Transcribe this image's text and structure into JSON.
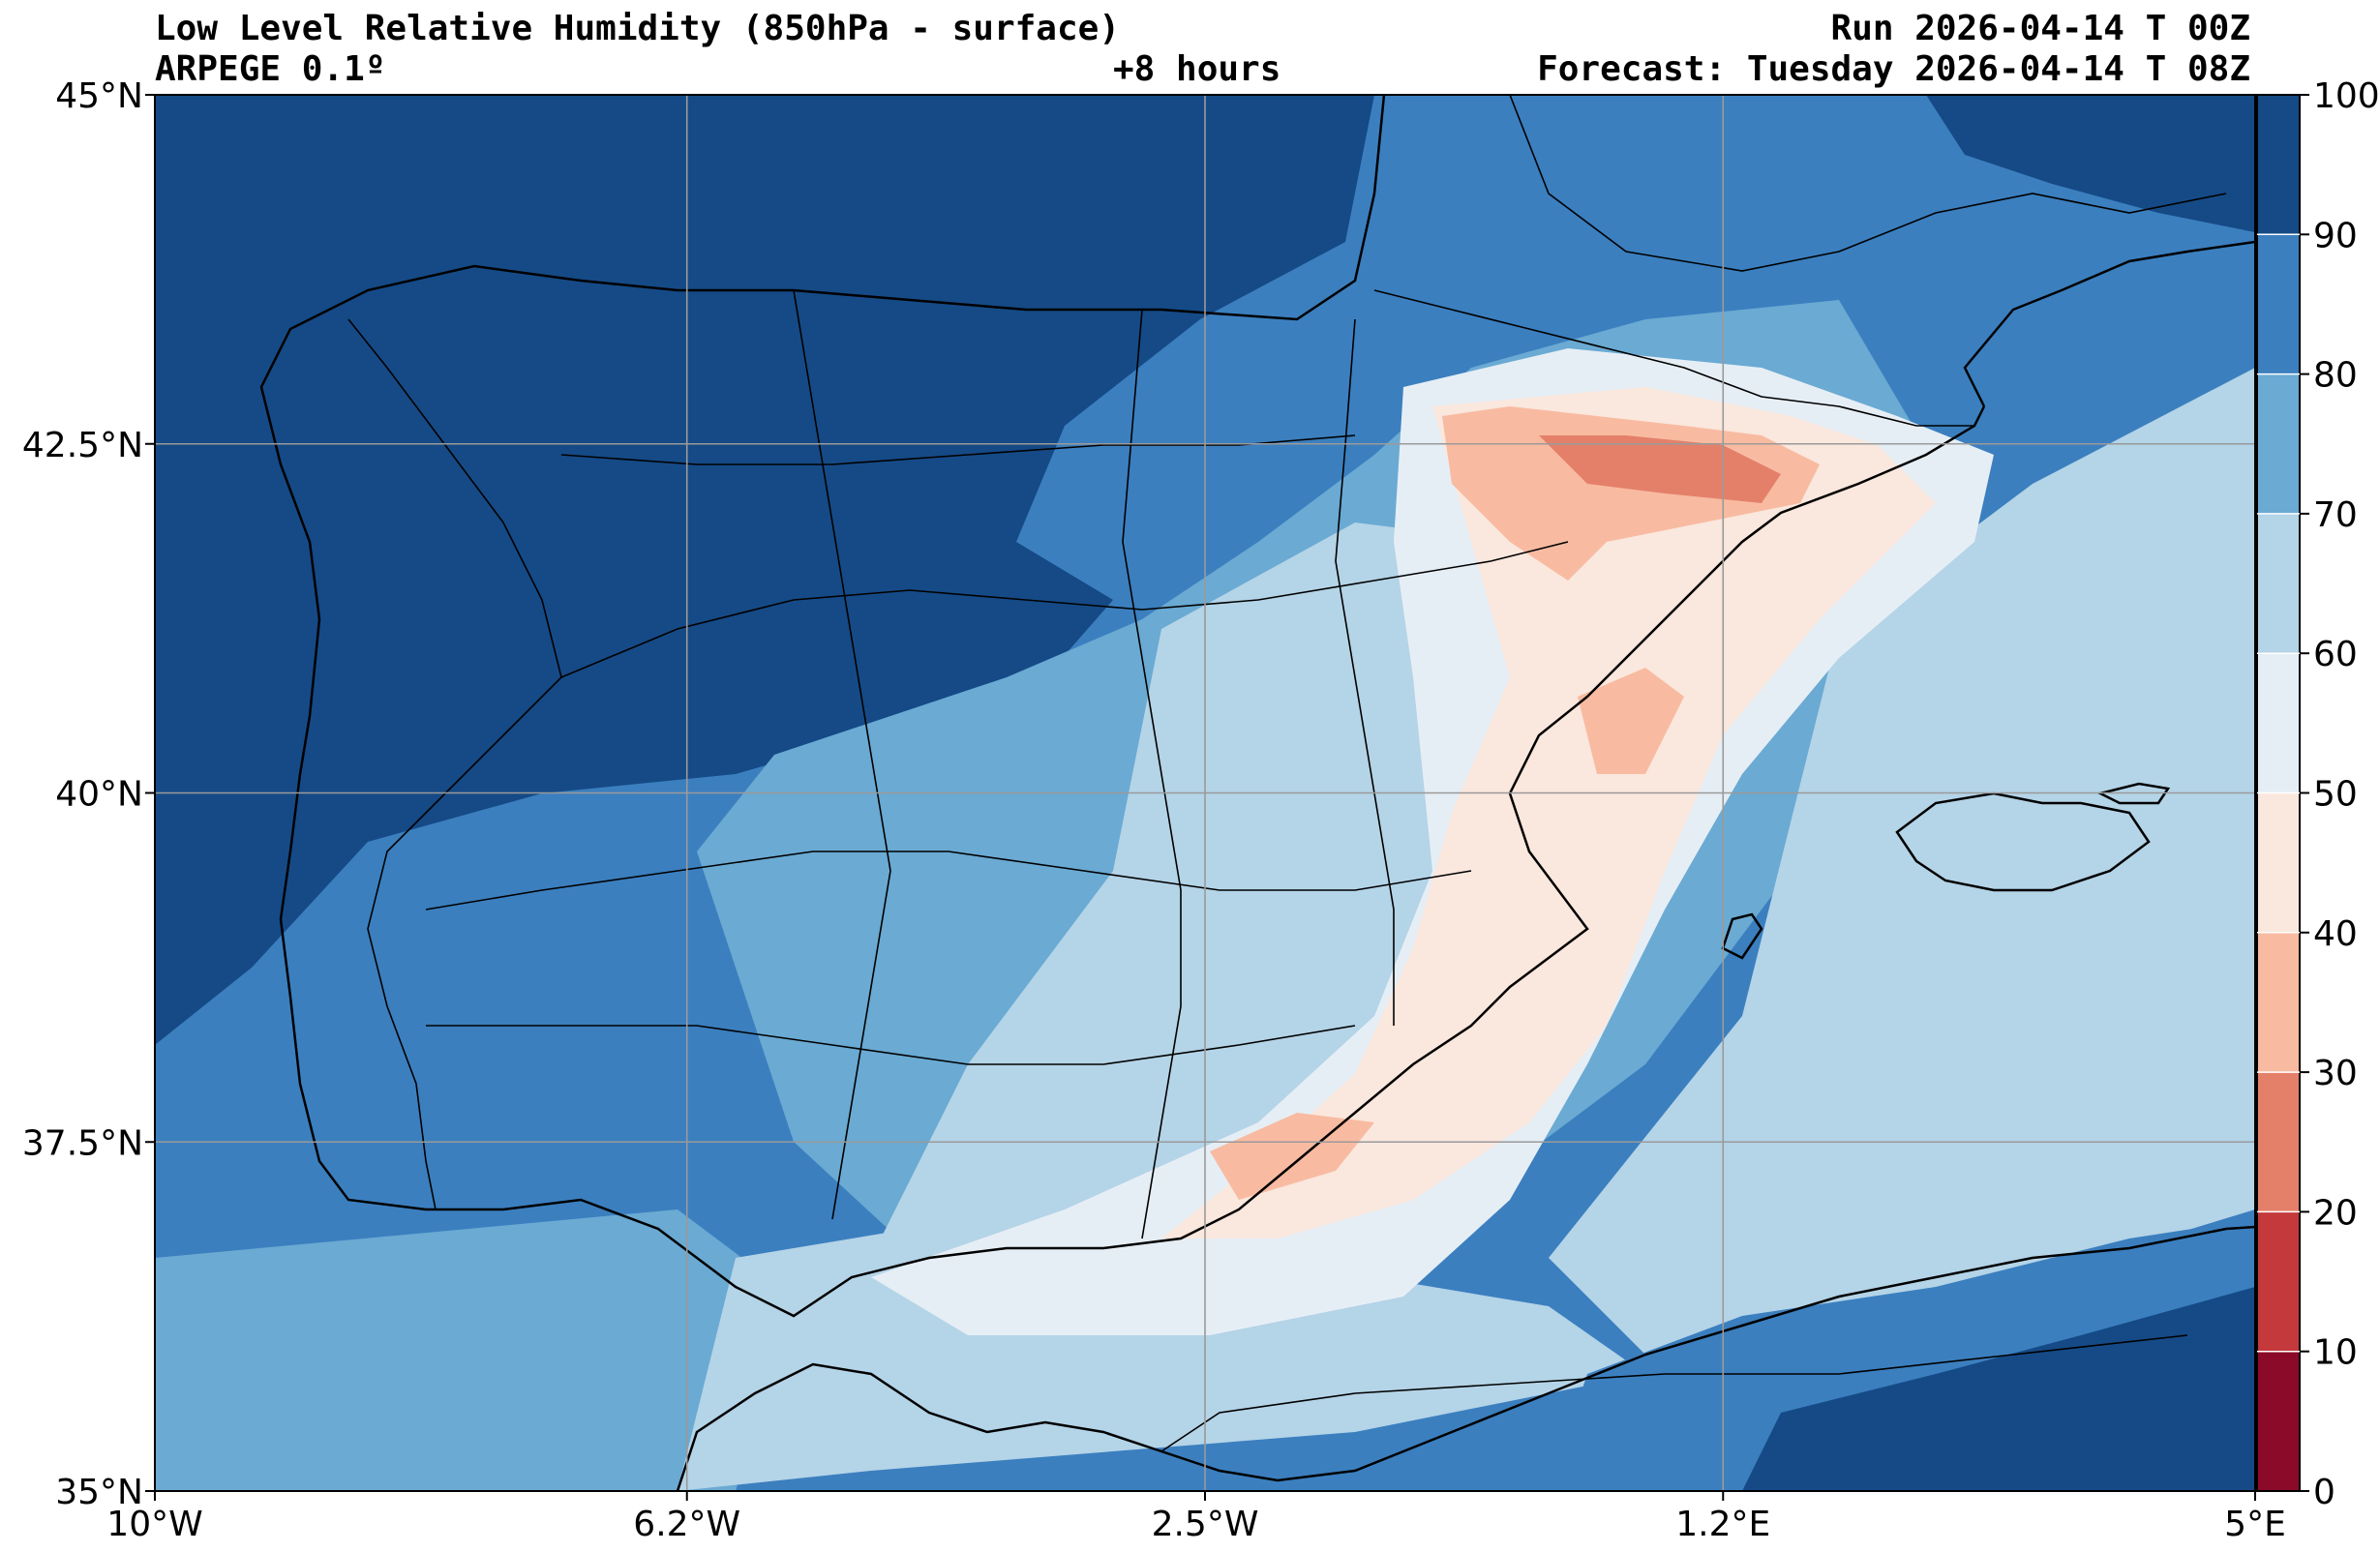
{
  "header": {
    "title": "Low Level Relative Humidity (850hPa - surface)",
    "model": "ARPEGE 0.1º",
    "lead": "+8 hours",
    "run": "Run 2026-04-14 T 00Z",
    "forecast": "Forecast: Tuesday 2026-04-14 T 08Z"
  },
  "map": {
    "lon_range": [
      -10,
      5
    ],
    "lat_range": [
      35,
      45
    ],
    "lon_ticks": [
      {
        "value": -10,
        "label": "10°W"
      },
      {
        "value": -6.2,
        "label": "6.2°W"
      },
      {
        "value": -2.5,
        "label": "2.5°W"
      },
      {
        "value": 1.2,
        "label": "1.2°E"
      },
      {
        "value": 5,
        "label": "5°E"
      }
    ],
    "lat_ticks": [
      {
        "value": 45,
        "label": "45°N"
      },
      {
        "value": 42.5,
        "label": "42.5°N"
      },
      {
        "value": 40,
        "label": "40°N"
      },
      {
        "value": 37.5,
        "label": "37.5°N"
      },
      {
        "value": 35,
        "label": "35°N"
      }
    ]
  },
  "colorbar": {
    "levels": [
      {
        "from": 0,
        "to": 10,
        "color": "#8b0a2a"
      },
      {
        "from": 10,
        "to": 20,
        "color": "#c4393b"
      },
      {
        "from": 20,
        "to": 30,
        "color": "#e4806a"
      },
      {
        "from": 30,
        "to": 40,
        "color": "#f8bba1"
      },
      {
        "from": 40,
        "to": 50,
        "color": "#fae7dd"
      },
      {
        "from": 50,
        "to": 60,
        "color": "#e6eef5"
      },
      {
        "from": 60,
        "to": 70,
        "color": "#b4d4e7"
      },
      {
        "from": 70,
        "to": 80,
        "color": "#6aaad3"
      },
      {
        "from": 80,
        "to": 90,
        "color": "#3b7fbf"
      },
      {
        "from": 90,
        "to": 100,
        "color": "#154a86"
      }
    ],
    "tick_labels": [
      "0",
      "10",
      "20",
      "30",
      "40",
      "50",
      "60",
      "70",
      "80",
      "90",
      "100"
    ]
  }
}
